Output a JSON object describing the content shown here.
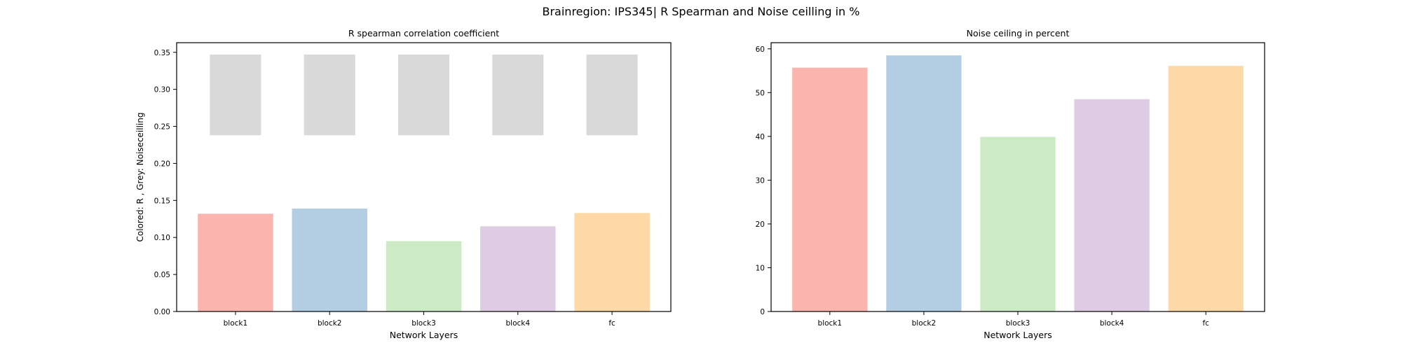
{
  "figure": {
    "suptitle": "Brainregion: IPS345| R Spearman and Noise ceilling in %"
  },
  "colors": {
    "bars": [
      "#fbb4ae",
      "#b3cde3",
      "#ccebc5",
      "#decbe4",
      "#fed9a6"
    ],
    "noise_ceiling": "#d9d9d9",
    "axis": "#000000",
    "background": "#ffffff"
  },
  "chart_data": [
    {
      "type": "bar",
      "title": "R spearman correlation coefficient",
      "xlabel": "Network Layers",
      "ylabel": "Colored: R , Grey: Noiseceilling",
      "categories": [
        "block1",
        "block2",
        "block3",
        "block4",
        "fc"
      ],
      "series": [
        {
          "role": "R",
          "values": [
            0.132,
            0.139,
            0.095,
            0.115,
            0.133
          ]
        }
      ],
      "noise_ceiling_range": [
        [
          0.238,
          0.347
        ],
        [
          0.238,
          0.347
        ],
        [
          0.238,
          0.347
        ],
        [
          0.238,
          0.347
        ],
        [
          0.238,
          0.347
        ]
      ],
      "ylim": [
        0,
        0.363
      ],
      "yticks": [
        "0.00",
        "0.05",
        "0.10",
        "0.15",
        "0.20",
        "0.25",
        "0.30",
        "0.35"
      ],
      "grid": false,
      "legend": "none"
    },
    {
      "type": "bar",
      "title": "Noise ceiling in percent",
      "xlabel": "Network Layers",
      "ylabel": "",
      "categories": [
        "block1",
        "block2",
        "block3",
        "block4",
        "fc"
      ],
      "series": [
        {
          "role": "noise ceiling %",
          "values": [
            55.7,
            58.5,
            39.9,
            48.5,
            56.1
          ]
        }
      ],
      "ylim": [
        0,
        61.4
      ],
      "yticks": [
        "0",
        "10",
        "20",
        "30",
        "40",
        "50",
        "60"
      ],
      "grid": false,
      "legend": "none"
    }
  ]
}
